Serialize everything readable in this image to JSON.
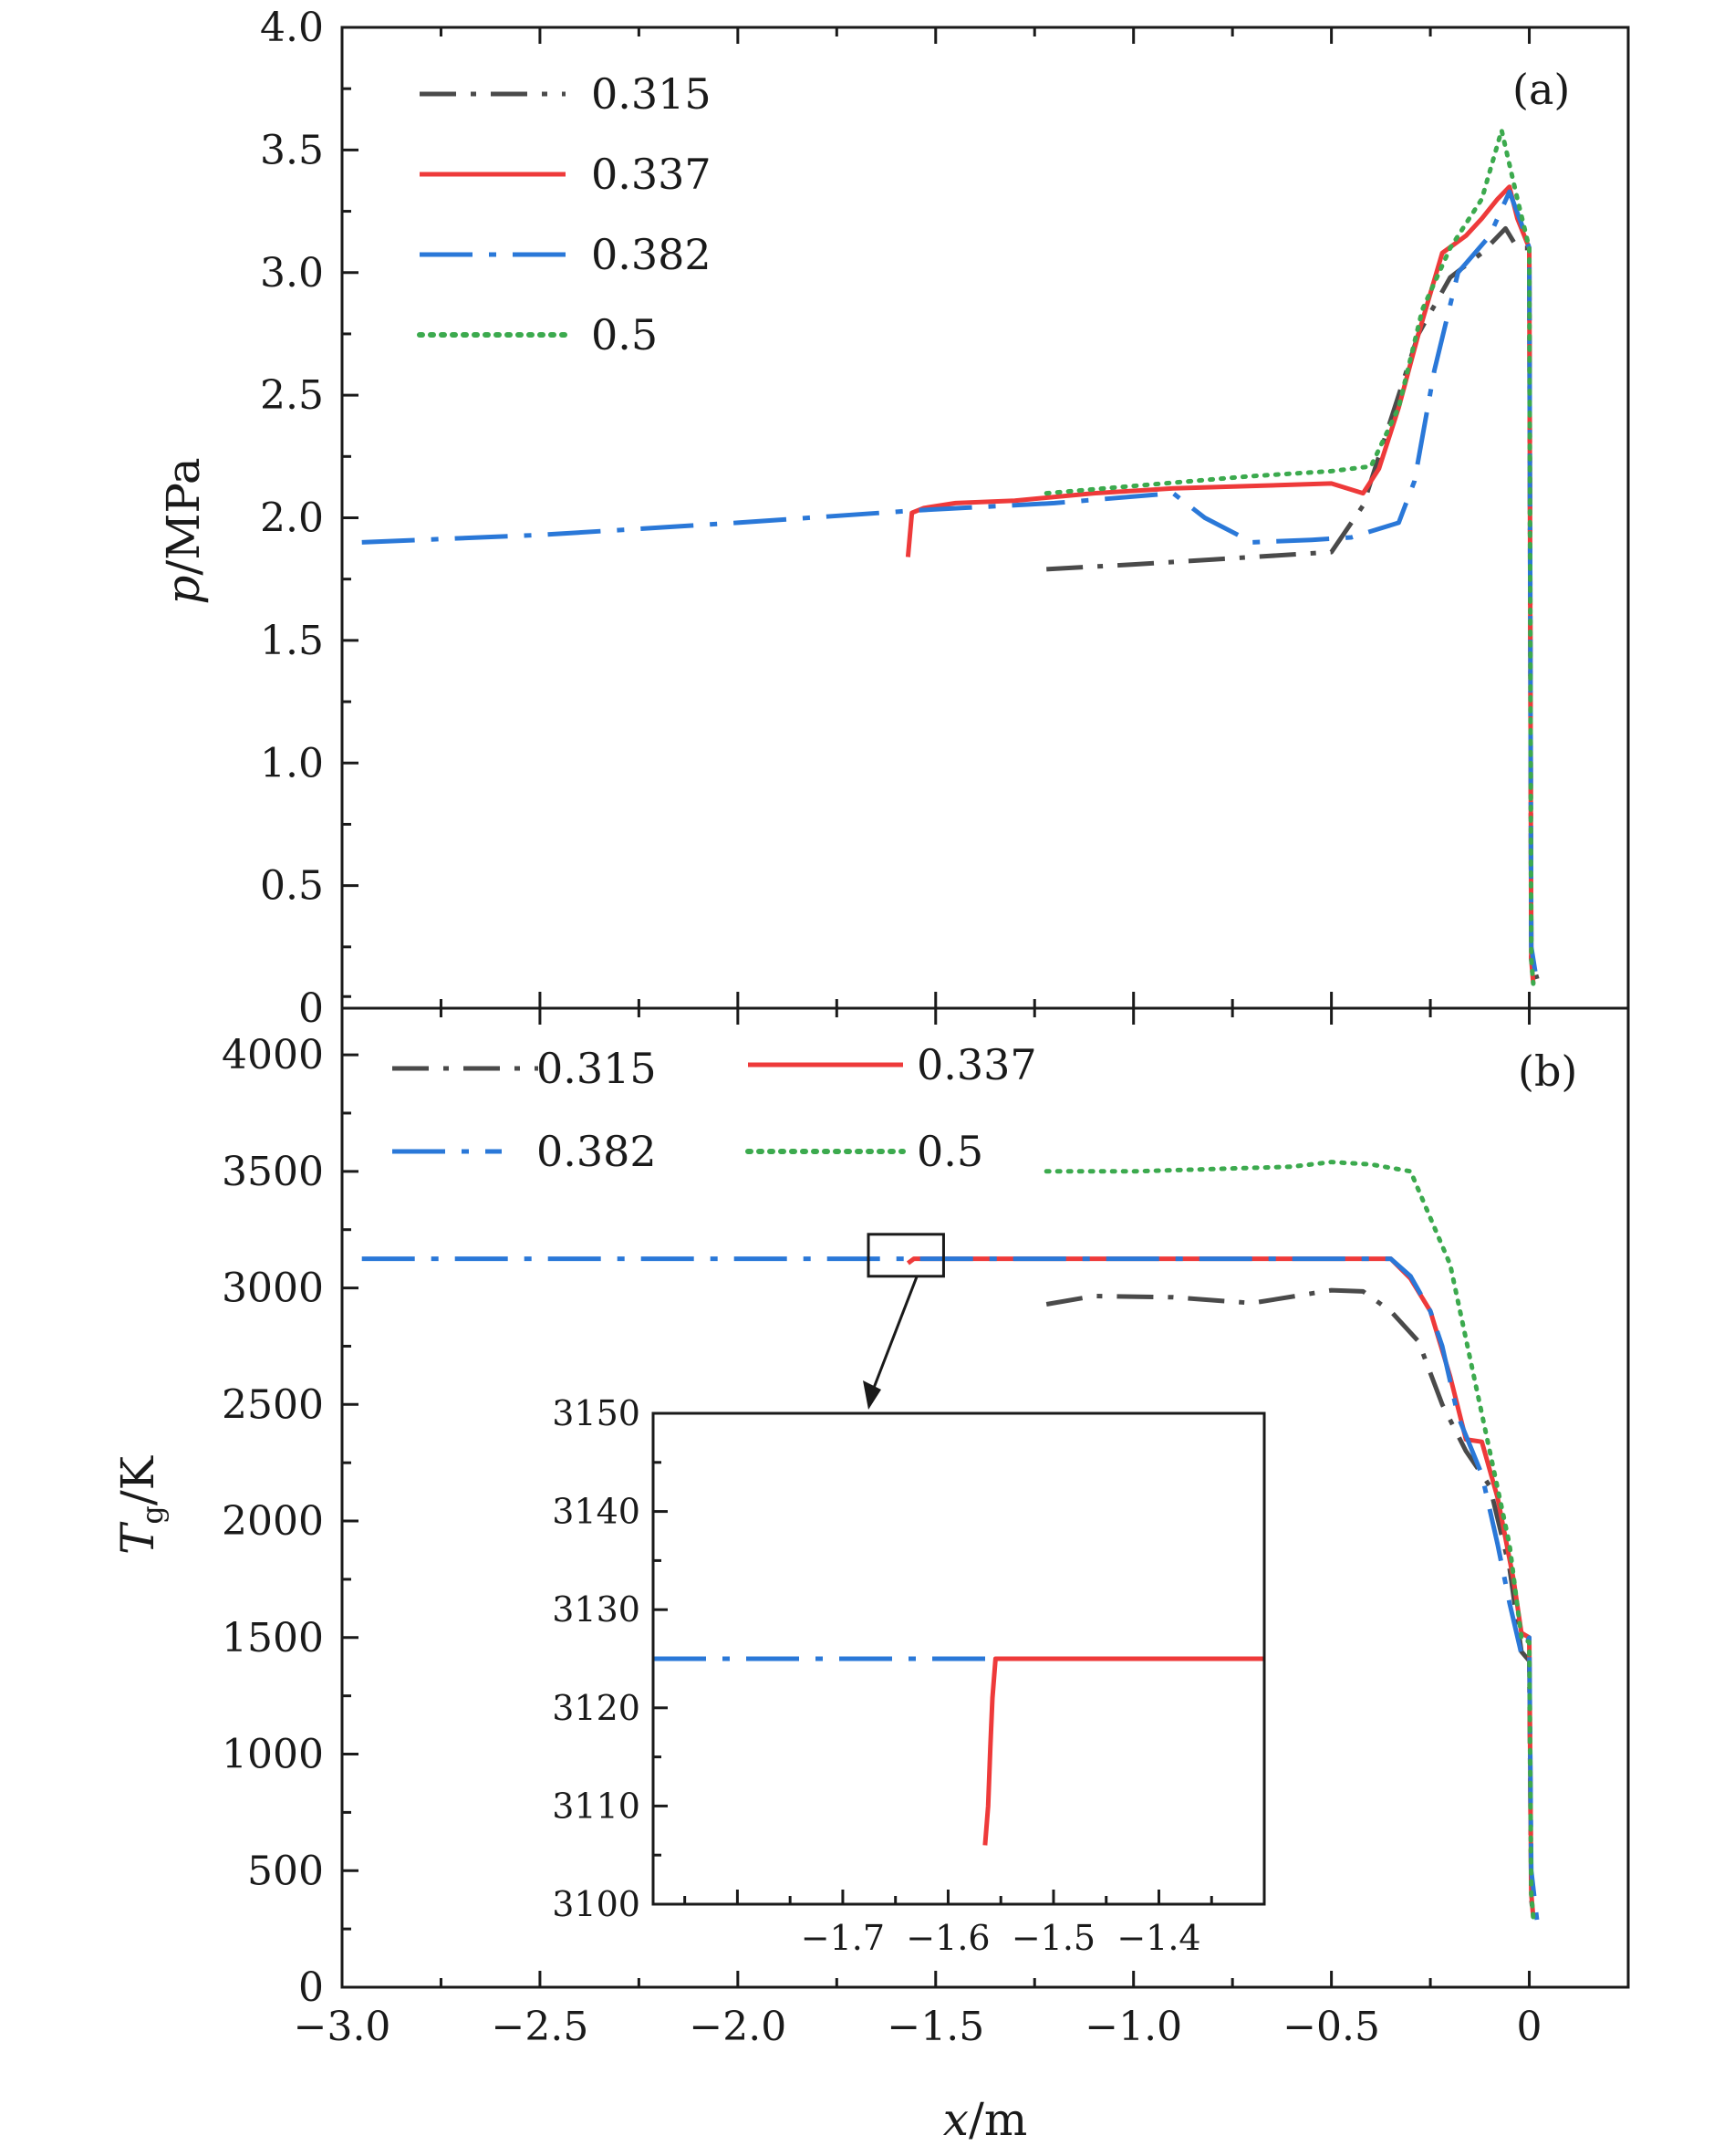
{
  "colors": {
    "0.315": "#4a4a4a",
    "0.337": "#ee3a3a",
    "0.382": "#2a78d8",
    "0.5": "#3caa4e"
  },
  "chart_data": [
    {
      "id": "a",
      "type": "line",
      "panel_label": "(a)",
      "ylabel_italic": "p",
      "ylabel_rest": "/MPa",
      "xlim": [
        -3.0,
        0.25
      ],
      "ylim": [
        0,
        4.0
      ],
      "ytick_labels": [
        "0",
        "0.5",
        "1.0",
        "1.5",
        "2.0",
        "2.5",
        "3.0",
        "3.5",
        "4.0"
      ],
      "legend": [
        "0.315",
        "0.337",
        "0.382",
        "0.5"
      ],
      "legend_placement": "top-left",
      "series": [
        {
          "name": "0.315",
          "style": "dashdot",
          "x": [
            -1.22,
            -1.0,
            -0.8,
            -0.5,
            -0.42,
            -0.35,
            -0.28,
            -0.2,
            -0.12,
            -0.06,
            -0.03,
            0.0,
            0.005,
            0.02
          ],
          "y": [
            1.79,
            1.81,
            1.83,
            1.86,
            2.05,
            2.4,
            2.75,
            2.98,
            3.08,
            3.18,
            3.1,
            3.1,
            0.2,
            0.12
          ]
        },
        {
          "name": "0.337",
          "style": "solid",
          "x": [
            -1.57,
            -1.56,
            -1.53,
            -1.45,
            -1.3,
            -1.1,
            -0.9,
            -0.7,
            -0.5,
            -0.42,
            -0.38,
            -0.33,
            -0.28,
            -0.22,
            -0.16,
            -0.12,
            -0.08,
            -0.05,
            -0.03,
            0.0,
            0.005,
            0.01
          ],
          "y": [
            1.84,
            2.02,
            2.04,
            2.06,
            2.07,
            2.1,
            2.12,
            2.13,
            2.14,
            2.1,
            2.2,
            2.45,
            2.75,
            3.08,
            3.15,
            3.22,
            3.3,
            3.35,
            3.22,
            3.1,
            0.2,
            0.1
          ]
        },
        {
          "name": "0.382",
          "style": "longdashdot",
          "x": [
            -2.95,
            -2.5,
            -2.0,
            -1.55,
            -1.2,
            -0.9,
            -0.82,
            -0.7,
            -0.55,
            -0.45,
            -0.33,
            -0.29,
            -0.24,
            -0.18,
            -0.1,
            -0.05,
            -0.02,
            0.0,
            0.005,
            0.02
          ],
          "y": [
            1.9,
            1.93,
            1.98,
            2.03,
            2.06,
            2.1,
            2.0,
            1.9,
            1.91,
            1.92,
            1.98,
            2.15,
            2.6,
            3.0,
            3.15,
            3.33,
            3.2,
            3.1,
            0.25,
            0.1
          ]
        },
        {
          "name": "0.5",
          "style": "dotted",
          "x": [
            -1.22,
            -1.0,
            -0.7,
            -0.5,
            -0.4,
            -0.33,
            -0.27,
            -0.2,
            -0.12,
            -0.07,
            -0.03,
            0.0,
            0.005,
            0.01
          ],
          "y": [
            2.1,
            2.13,
            2.17,
            2.19,
            2.21,
            2.45,
            2.85,
            3.1,
            3.3,
            3.58,
            3.3,
            3.1,
            0.2,
            0.1
          ]
        }
      ]
    },
    {
      "id": "b",
      "type": "line",
      "panel_label": "(b)",
      "ylabel_main": "T",
      "ylabel_sub": "g",
      "ylabel_rest": "/K",
      "xlabel_italic": "x",
      "xlabel_rest": "/m",
      "xlim": [
        -3.0,
        0.25
      ],
      "ylim": [
        0,
        4200
      ],
      "xtick_labels": [
        "−3.0",
        "−2.5",
        "−2.0",
        "−1.5",
        "−1.0",
        "−0.5",
        "0"
      ],
      "ytick_labels": [
        "0",
        "500",
        "1000",
        "1500",
        "2000",
        "2500",
        "3000",
        "3500",
        "4000"
      ],
      "legend": [
        "0.315",
        "0.337",
        "0.382",
        "0.5"
      ],
      "legend_placement": "top, two columns",
      "series": [
        {
          "name": "0.315",
          "style": "dashdot",
          "x": [
            -1.22,
            -1.1,
            -0.9,
            -0.7,
            -0.5,
            -0.42,
            -0.35,
            -0.28,
            -0.22,
            -0.16,
            -0.1,
            -0.05,
            -0.02,
            0.0,
            0.005,
            0.01
          ],
          "y": [
            2930,
            2965,
            2960,
            2935,
            2990,
            2985,
            2900,
            2770,
            2500,
            2300,
            2150,
            1800,
            1440,
            1400,
            380,
            300
          ]
        },
        {
          "name": "0.337",
          "style": "solid",
          "x": [
            -1.57,
            -1.555,
            -1.5,
            -1.2,
            -0.9,
            -0.6,
            -0.35,
            -0.3,
            -0.25,
            -0.2,
            -0.16,
            -0.12,
            -0.08,
            -0.04,
            -0.02,
            0.0,
            0.005,
            0.01
          ],
          "y": [
            3106,
            3125,
            3125,
            3125,
            3125,
            3125,
            3125,
            3040,
            2900,
            2620,
            2350,
            2340,
            2100,
            1750,
            1520,
            1500,
            400,
            300
          ]
        },
        {
          "name": "0.382",
          "style": "longdashdot",
          "x": [
            -2.95,
            -2.5,
            -2.0,
            -1.6,
            -1.3,
            -1.0,
            -0.7,
            -0.35,
            -0.3,
            -0.25,
            -0.22,
            -0.18,
            -0.12,
            -0.08,
            -0.05,
            -0.02,
            0.0,
            0.005,
            0.02
          ],
          "y": [
            3125,
            3125,
            3125,
            3125,
            3125,
            3125,
            3125,
            3125,
            3050,
            2900,
            2750,
            2450,
            2200,
            1900,
            1650,
            1430,
            1500,
            500,
            280
          ]
        },
        {
          "name": "0.5",
          "style": "dotted",
          "x": [
            -1.22,
            -1.0,
            -0.8,
            -0.6,
            -0.5,
            -0.4,
            -0.3,
            -0.25,
            -0.2,
            -0.15,
            -0.1,
            -0.05,
            -0.02,
            0.0,
            0.005,
            0.01
          ],
          "y": [
            3500,
            3500,
            3510,
            3520,
            3540,
            3530,
            3500,
            3300,
            3100,
            2700,
            2300,
            1900,
            1500,
            1480,
            400,
            300
          ]
        }
      ],
      "inset": {
        "xlim": [
          -1.88,
          -1.3
        ],
        "ylim": [
          3100,
          3150
        ],
        "xtick_labels": [
          "−1.7",
          "−1.6",
          "−1.5",
          "−1.4"
        ],
        "ytick_labels": [
          "3100",
          "3110",
          "3120",
          "3130",
          "3140",
          "3150"
        ],
        "zoom_box_x": [
          -1.67,
          -1.48
        ],
        "zoom_box_y": [
          3050,
          3230
        ],
        "series": [
          {
            "name": "0.382",
            "style": "longdashdot",
            "x": [
              -1.88,
              -1.3
            ],
            "y": [
              3125,
              3125
            ]
          },
          {
            "name": "0.337",
            "style": "solid",
            "x": [
              -1.565,
              -1.562,
              -1.56,
              -1.558,
              -1.555,
              -1.3
            ],
            "y": [
              3106,
              3110,
              3116,
              3121,
              3125,
              3125
            ]
          }
        ]
      }
    }
  ]
}
